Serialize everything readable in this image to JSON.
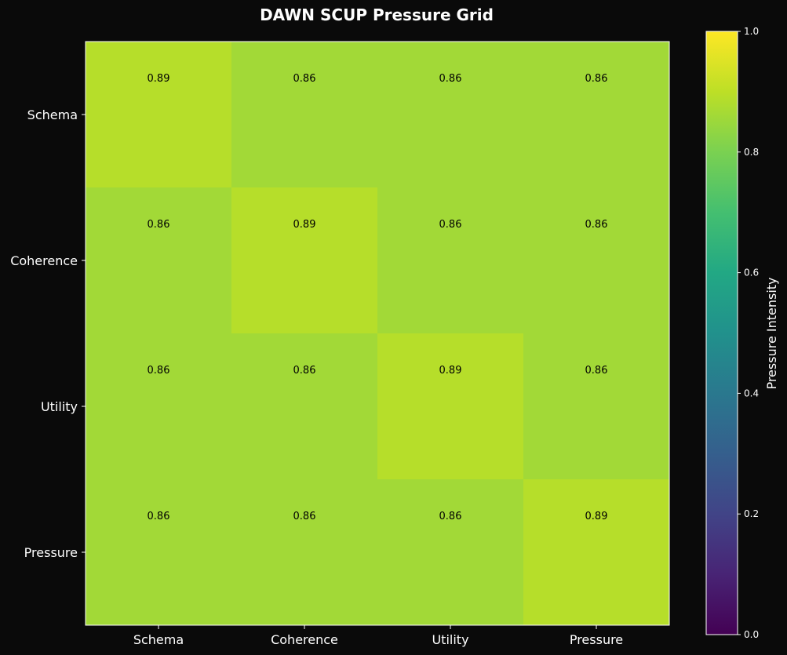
{
  "chart_data": {
    "type": "heatmap",
    "title": "DAWN SCUP Pressure Grid",
    "x_categories": [
      "Schema",
      "Coherence",
      "Utility",
      "Pressure"
    ],
    "y_categories": [
      "Schema",
      "Coherence",
      "Utility",
      "Pressure"
    ],
    "values": [
      [
        0.89,
        0.86,
        0.86,
        0.86
      ],
      [
        0.86,
        0.89,
        0.86,
        0.86
      ],
      [
        0.86,
        0.86,
        0.89,
        0.86
      ],
      [
        0.86,
        0.86,
        0.86,
        0.89
      ]
    ],
    "colormap": "viridis",
    "vmin": 0.0,
    "vmax": 1.0,
    "colorbar": {
      "label": "Pressure Intensity",
      "ticks": [
        "0.0",
        "0.2",
        "0.4",
        "0.6",
        "0.8",
        "1.0"
      ]
    }
  },
  "colors": {
    "background": "#0a0a0a",
    "text": "#ffffff",
    "cell_text": "#000000",
    "axes_edge": "#ffffff"
  }
}
